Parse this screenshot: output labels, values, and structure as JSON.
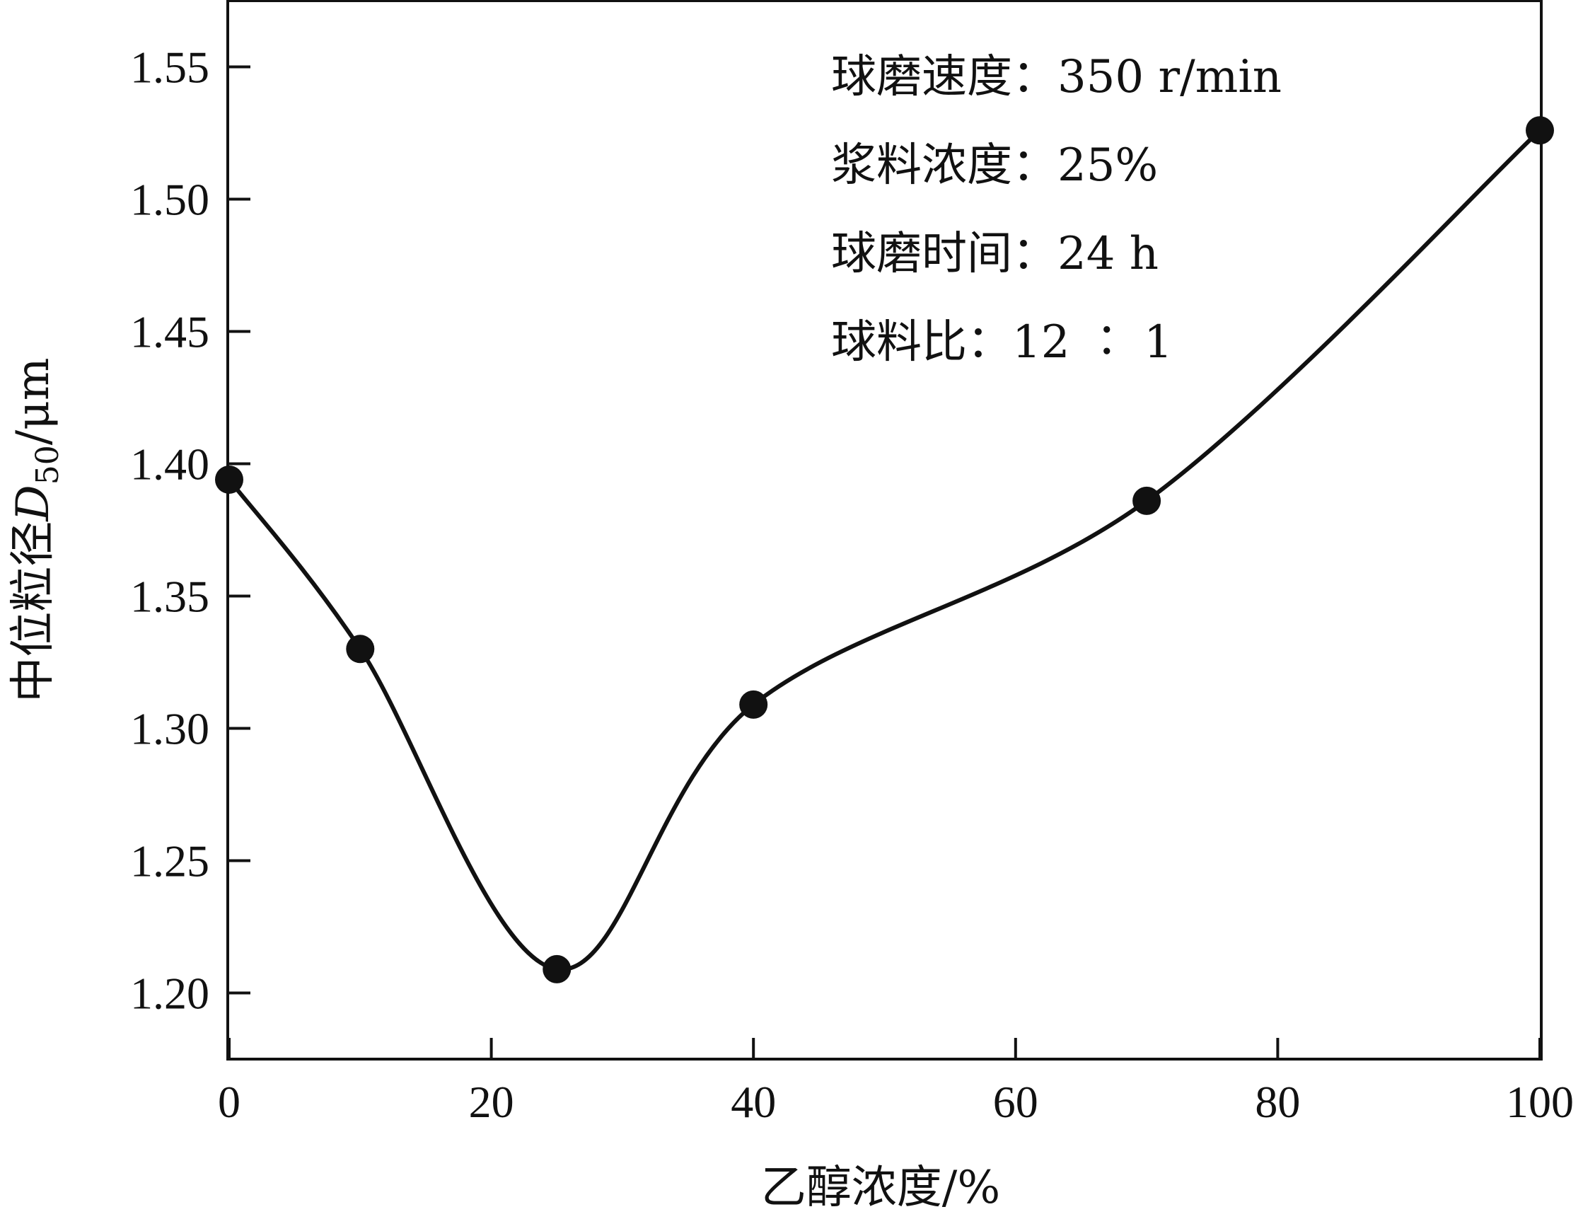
{
  "chart_data": {
    "type": "line",
    "x": [
      0,
      10,
      25,
      40,
      70,
      100
    ],
    "series": [
      {
        "values": [
          1.394,
          1.33,
          1.209,
          1.309,
          1.386,
          1.526
        ]
      }
    ],
    "xlabel": "乙醇浓度/%",
    "ylabel_main": "中位粒径",
    "ylabel_symbol": "D",
    "ylabel_subscript": "50",
    "ylabel_unit": "/μm",
    "xlim": [
      0,
      100
    ],
    "ylim": [
      1.175,
      1.575
    ],
    "xticks": [
      0,
      20,
      40,
      60,
      80,
      100
    ],
    "xtick_labels": [
      "0",
      "20",
      "40",
      "60",
      "80",
      "100"
    ],
    "yticks": [
      1.2,
      1.25,
      1.3,
      1.35,
      1.4,
      1.45,
      1.5,
      1.55
    ],
    "ytick_labels": [
      "1.20",
      "1.25",
      "1.30",
      "1.35",
      "1.40",
      "1.45",
      "1.50",
      "1.55"
    ],
    "annotations": [
      "球磨速度：350 r/min",
      "浆料浓度：25%",
      "球磨时间：24 h",
      "球料比：12 ∶ 1"
    ],
    "grid": false,
    "line_color": "#111111",
    "marker_color": "#111111"
  }
}
